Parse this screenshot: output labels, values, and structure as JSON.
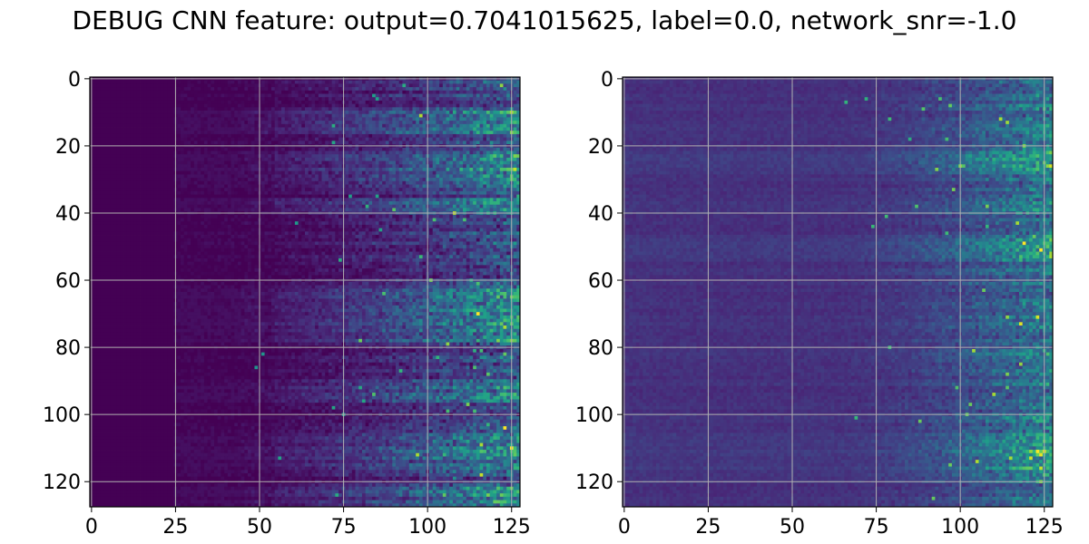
{
  "figure": {
    "title": "DEBUG CNN feature: output=0.7041015625, label=0.0, network_snr=-1.0"
  },
  "chart_data": [
    {
      "type": "heatmap",
      "title": "",
      "xlabel": "",
      "ylabel": "",
      "rows": 128,
      "cols": 128,
      "xlim": [
        -0.5,
        127.5
      ],
      "ylim": [
        127.5,
        -0.5
      ],
      "x_ticks": [
        0,
        25,
        50,
        75,
        100,
        125
      ],
      "y_ticks": [
        0,
        20,
        40,
        60,
        80,
        100,
        120
      ],
      "grid": true,
      "colormap": "viridis",
      "pattern": {
        "zero_until_col": 25,
        "ramp_start_col": 25,
        "ramp_end_col": 127,
        "base_level": 0.0,
        "noise_level": 0.15,
        "bright_row_bands": [
          [
            10,
            16
          ],
          [
            22,
            32
          ],
          [
            36,
            40
          ],
          [
            62,
            78
          ],
          [
            90,
            96
          ],
          [
            106,
            116
          ],
          [
            122,
            127
          ]
        ]
      }
    },
    {
      "type": "heatmap",
      "title": "",
      "xlabel": "",
      "ylabel": "",
      "rows": 128,
      "cols": 128,
      "xlim": [
        -0.5,
        127.5
      ],
      "ylim": [
        127.5,
        -0.5
      ],
      "x_ticks": [
        0,
        25,
        50,
        75,
        100,
        125
      ],
      "y_ticks": [
        0,
        20,
        40,
        60,
        80,
        100,
        120
      ],
      "grid": true,
      "colormap": "viridis",
      "pattern": {
        "zero_until_col": 0,
        "ramp_start_col": 60,
        "ramp_end_col": 127,
        "base_level": 0.14,
        "noise_level": 0.18,
        "bright_row_bands": [
          [
            22,
            28
          ],
          [
            48,
            54
          ],
          [
            106,
            116
          ]
        ]
      }
    }
  ]
}
